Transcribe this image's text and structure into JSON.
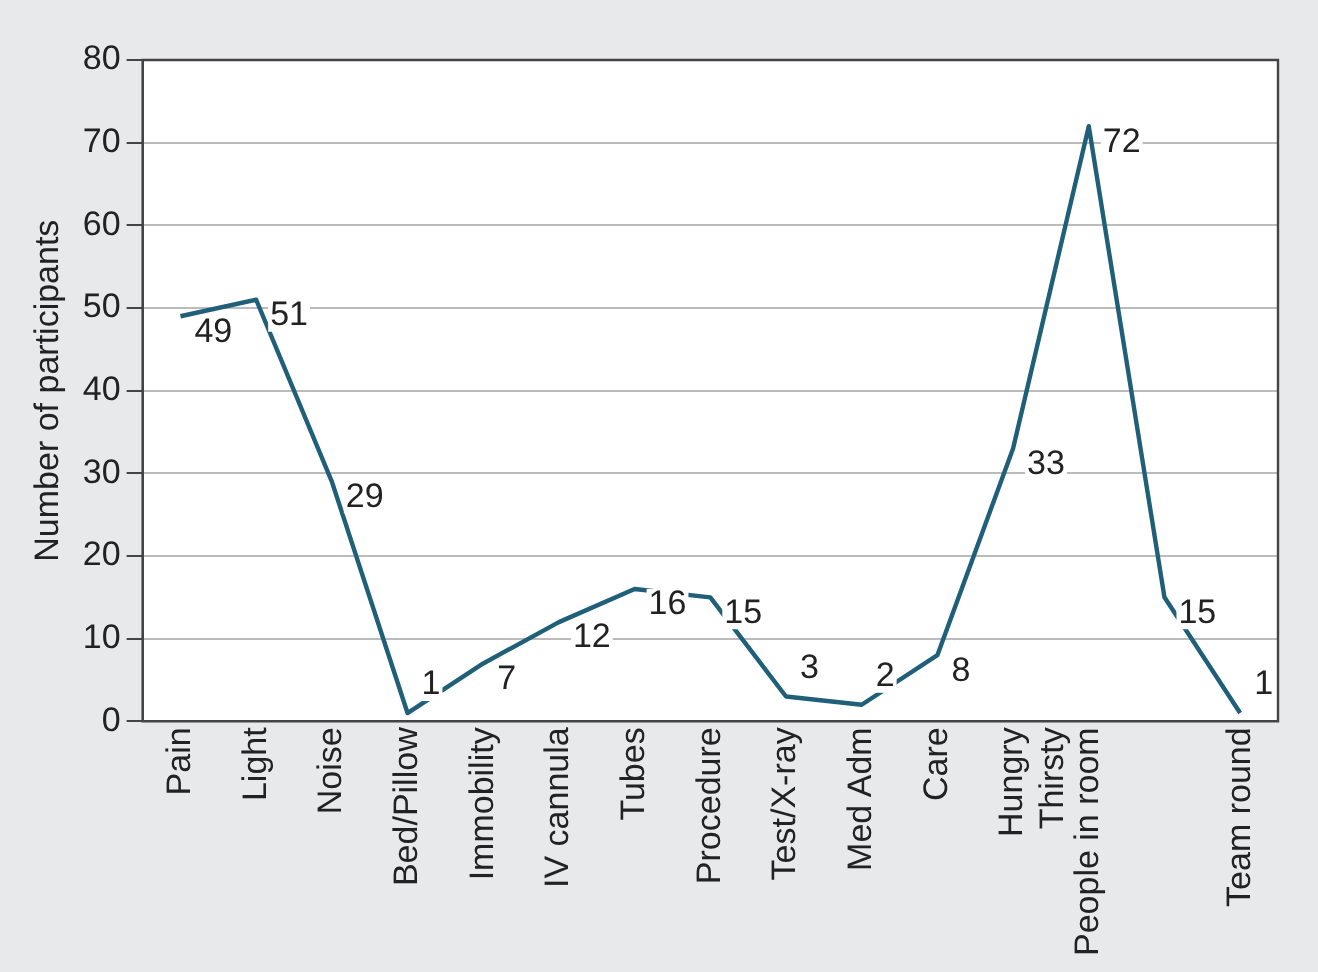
{
  "chart_data": {
    "type": "line",
    "ylabel": "Number of participants",
    "categories": [
      "Pain",
      "Light",
      "Noise",
      "Bed/Pillow",
      "Immobility",
      "IV cannula",
      "Tubes",
      "Procedure",
      "Test/X-ray",
      "Med Adm",
      "Care",
      "Hungry\nThirsty",
      "People in room",
      null,
      "Team round"
    ],
    "series": [
      {
        "color": "#1f5f7a",
        "values": [
          49,
          51,
          29,
          1,
          7,
          12,
          16,
          15,
          3,
          2,
          8,
          33,
          72,
          15,
          1
        ]
      }
    ],
    "ylim": [
      0,
      80
    ],
    "yticks": [
      0,
      10,
      20,
      30,
      40,
      50,
      60,
      70,
      80
    ],
    "grid": "y",
    "data_labels": true,
    "marker": "none",
    "line_style": "solid",
    "legend": false
  }
}
